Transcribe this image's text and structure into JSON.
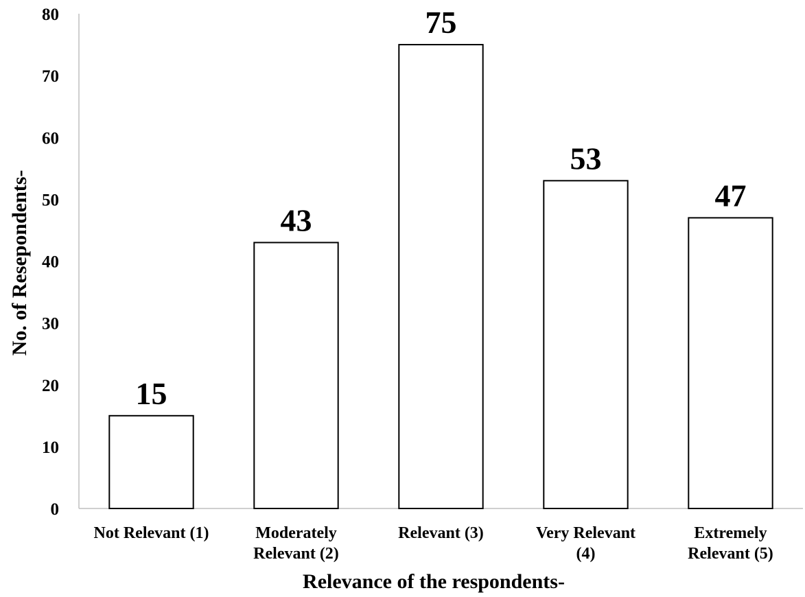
{
  "chart_data": {
    "type": "bar",
    "categories": [
      [
        "Not Relevant (1)"
      ],
      [
        "Moderately",
        "Relevant (2)"
      ],
      [
        "Relevant (3)"
      ],
      [
        "Very Relevant",
        "(4)"
      ],
      [
        "Extremely",
        "Relevant (5)"
      ]
    ],
    "values": [
      15,
      43,
      75,
      53,
      47
    ],
    "data_labels": [
      "15",
      "43",
      "75",
      "53",
      "47"
    ],
    "title": "",
    "xlabel": "Relevance of the respondents-",
    "ylabel": "No. of Resepondents-",
    "ylim": [
      0,
      80
    ],
    "yticks": [
      0,
      10,
      20,
      30,
      40,
      50,
      60,
      70,
      80
    ],
    "grid": false,
    "legend": "none",
    "colors": {
      "bar_fill": "#ffffff",
      "bar_stroke": "#000000",
      "axis": "#bfbfbf",
      "text": "#000000"
    }
  }
}
